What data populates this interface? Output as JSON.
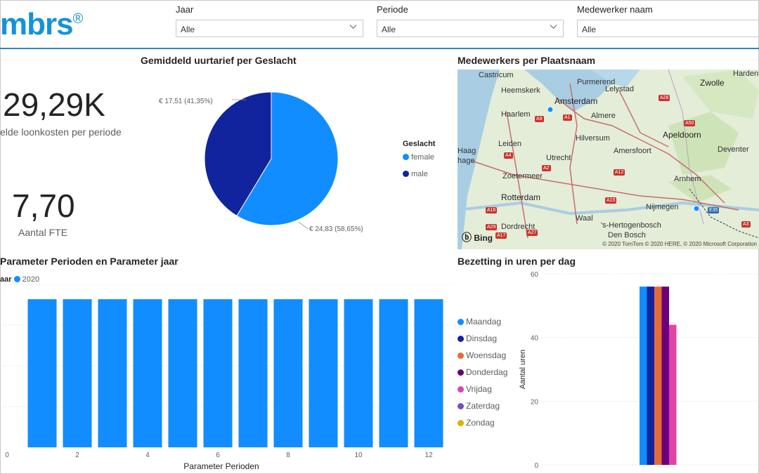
{
  "header": {
    "logo_text": "mbrs",
    "logo_mark": "®",
    "brand_color": "#1592d8"
  },
  "filters": [
    {
      "label": "Jaar",
      "value": "Alle"
    },
    {
      "label": "Periode",
      "value": "Alle"
    },
    {
      "label": "Medewerker naam",
      "value": "Alle"
    }
  ],
  "kpis": [
    {
      "value": "29,29K",
      "label": "elde loonkosten per periode"
    },
    {
      "value": "7,70",
      "label": "Aantal FTE"
    }
  ],
  "pie_visual": {
    "title": "Gemiddeld uurtarief per Geslacht",
    "legend_title": "Geslacht",
    "legend": [
      {
        "name": "female",
        "color": "#118dff"
      },
      {
        "name": "male",
        "color": "#12239e"
      }
    ],
    "label_male": "€ 17,51 (41,35%)",
    "label_female": "€ 24,83 (58,65%)"
  },
  "map_visual": {
    "title": "Medewerkers per Plaatsnaam",
    "places": [
      "Castricum",
      "Purmerend",
      "Lelystad",
      "Zwolle",
      "Hardenb",
      "Heemskerk",
      "Amsterdam",
      "Haarlem",
      "Almere",
      "Apeldoorn",
      "Leiden",
      "Hilversum",
      "Haag",
      "hage",
      "Utrecht",
      "Amersfoort",
      "Deventer",
      "Zoetermeer",
      "Arnhem",
      "Rotterdam",
      "Nijmegen",
      "Dordrecht",
      "'s-Hertogenbosch",
      "Den Bosch",
      "Waal"
    ],
    "roads": [
      "A1",
      "A2",
      "A4",
      "A9",
      "A12",
      "A15",
      "A16",
      "A17",
      "A27",
      "A28",
      "A29",
      "A50",
      "E35",
      "A3"
    ],
    "attribution": "Bing",
    "copyright": "© 2020 TomTom © 2020 HERE, © 2020 Microsoft Corporation"
  },
  "bar_visual": {
    "title": "Parameter Perioden en Parameter jaar",
    "legend_prefix": "aar",
    "legend_year": "2020"
  },
  "day_visual": {
    "title": "Bezetting in uren per dag",
    "legend": [
      {
        "name": "Maandag",
        "color": "#118dff"
      },
      {
        "name": "Dinsdag",
        "color": "#12239e"
      },
      {
        "name": "Woensdag",
        "color": "#e66c37"
      },
      {
        "name": "Donderdag",
        "color": "#6b007b"
      },
      {
        "name": "Vrijdag",
        "color": "#e044a7"
      },
      {
        "name": "Zaterdag",
        "color": "#744ec2"
      },
      {
        "name": "Zondag",
        "color": "#d9b300"
      }
    ]
  },
  "chart_data": [
    {
      "type": "pie",
      "title": "Gemiddeld uurtarief per Geslacht",
      "categories": [
        "female",
        "male"
      ],
      "values": [
        24.83,
        17.51
      ],
      "percentages": [
        58.65,
        41.35
      ],
      "colors": [
        "#118dff",
        "#12239e"
      ],
      "legend_title": "Geslacht"
    },
    {
      "type": "bar",
      "title": "Parameter Perioden en Parameter jaar",
      "xlabel": "Parameter Perioden",
      "ylabel": "",
      "series": [
        {
          "name": "2020",
          "color": "#118dff",
          "values": [
            1,
            1,
            1,
            1,
            1,
            1,
            1,
            1,
            1,
            1,
            1,
            1
          ]
        }
      ],
      "x": [
        1,
        2,
        3,
        4,
        5,
        6,
        7,
        8,
        9,
        10,
        11,
        12
      ],
      "xlim": [
        0,
        12.6
      ],
      "xticks": [
        0,
        2,
        4,
        6,
        8,
        10,
        12
      ],
      "ylim": [
        0,
        1.1
      ]
    },
    {
      "type": "bar",
      "title": "Bezetting in uren per dag",
      "xlabel": "",
      "ylabel": "Aantal uren",
      "ylim": [
        0,
        60
      ],
      "yticks": [
        0,
        20,
        40,
        60
      ],
      "series": [
        {
          "name": "Maandag",
          "color": "#118dff",
          "value": 56
        },
        {
          "name": "Dinsdag",
          "color": "#12239e",
          "value": 56
        },
        {
          "name": "Woensdag",
          "color": "#e66c37",
          "value": 56
        },
        {
          "name": "Donderdag",
          "color": "#6b007b",
          "value": 56
        },
        {
          "name": "Vrijdag",
          "color": "#e044a7",
          "value": 44
        },
        {
          "name": "Zaterdag",
          "color": "#744ec2",
          "value": 0
        },
        {
          "name": "Zondag",
          "color": "#d9b300",
          "value": 0
        }
      ]
    }
  ]
}
